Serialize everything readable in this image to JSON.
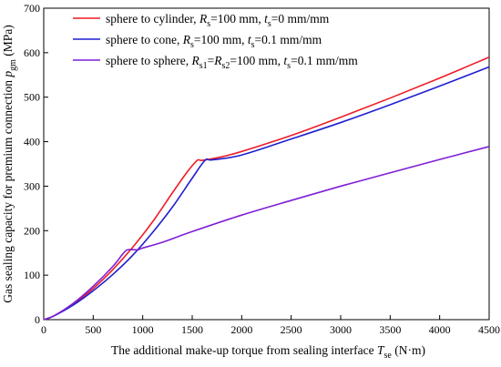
{
  "chart_data": {
    "type": "line",
    "title": "",
    "xlabel": {
      "main": "The additional make-up torque  from sealing interface ",
      "var": "T",
      "sub": "se",
      "unit": " (N·m)"
    },
    "ylabel": {
      "main": "Gas sealing capacity  for premium connection ",
      "var": "p",
      "sub": "gm",
      "unit": " (MPa)"
    },
    "xlim": [
      0,
      4500
    ],
    "ylim": [
      0,
      700
    ],
    "xticks": [
      0,
      500,
      1000,
      1500,
      2000,
      2500,
      3000,
      3500,
      4000,
      4500
    ],
    "yticks": [
      0,
      100,
      200,
      300,
      400,
      500,
      600,
      700
    ],
    "grid": false,
    "legend_position": "top-left",
    "series": [
      {
        "color": "#ee1c25",
        "legend": [
          {
            "t": "sphere to cylinder, "
          },
          {
            "t": "R",
            "i": true
          },
          {
            "t": "s",
            "sub": true
          },
          {
            "t": "=100 mm, "
          },
          {
            "t": "t",
            "i": true
          },
          {
            "t": "s",
            "sub": true
          },
          {
            "t": "=0 mm/mm"
          }
        ],
        "x": [
          0,
          100,
          300,
          500,
          700,
          900,
          1100,
          1300,
          1450,
          1550,
          1600,
          1800,
          2000,
          2500,
          3000,
          3500,
          4000,
          4500
        ],
        "y": [
          0,
          8,
          35,
          70,
          113,
          163,
          220,
          285,
          332,
          358,
          358,
          366,
          378,
          414,
          455,
          498,
          543,
          590
        ]
      },
      {
        "color": "#1f1fd0",
        "legend": [
          {
            "t": "sphere to cone, "
          },
          {
            "t": "R",
            "i": true
          },
          {
            "t": "s",
            "sub": true
          },
          {
            "t": "=100 mm, "
          },
          {
            "t": "t",
            "i": true
          },
          {
            "t": "s",
            "sub": true
          },
          {
            "t": "=0.1 mm/mm"
          }
        ],
        "x": [
          0,
          100,
          300,
          500,
          700,
          900,
          1100,
          1300,
          1500,
          1630,
          1700,
          2000,
          2500,
          3000,
          3500,
          4000,
          4500
        ],
        "y": [
          0,
          8,
          33,
          65,
          102,
          145,
          196,
          253,
          318,
          358,
          359,
          370,
          406,
          443,
          483,
          525,
          568
        ]
      },
      {
        "color": "#7f1fd6",
        "legend": [
          {
            "t": "sphere to sphere, "
          },
          {
            "t": "R",
            "i": true
          },
          {
            "t": "s1",
            "sub": true
          },
          {
            "t": "="
          },
          {
            "t": "R",
            "i": true
          },
          {
            "t": "s2",
            "sub": true
          },
          {
            "t": "=100 mm, "
          },
          {
            "t": "t",
            "i": true
          },
          {
            "t": "s",
            "sub": true
          },
          {
            "t": "=0.1 mm/mm"
          }
        ],
        "x": [
          0,
          100,
          300,
          500,
          700,
          800,
          850,
          950,
          1000,
          1200,
          1500,
          2000,
          2500,
          3000,
          3500,
          4000,
          4500
        ],
        "y": [
          0,
          8,
          37,
          75,
          120,
          148,
          157,
          157,
          161,
          174,
          198,
          235,
          268,
          300,
          330,
          360,
          389
        ]
      }
    ]
  }
}
